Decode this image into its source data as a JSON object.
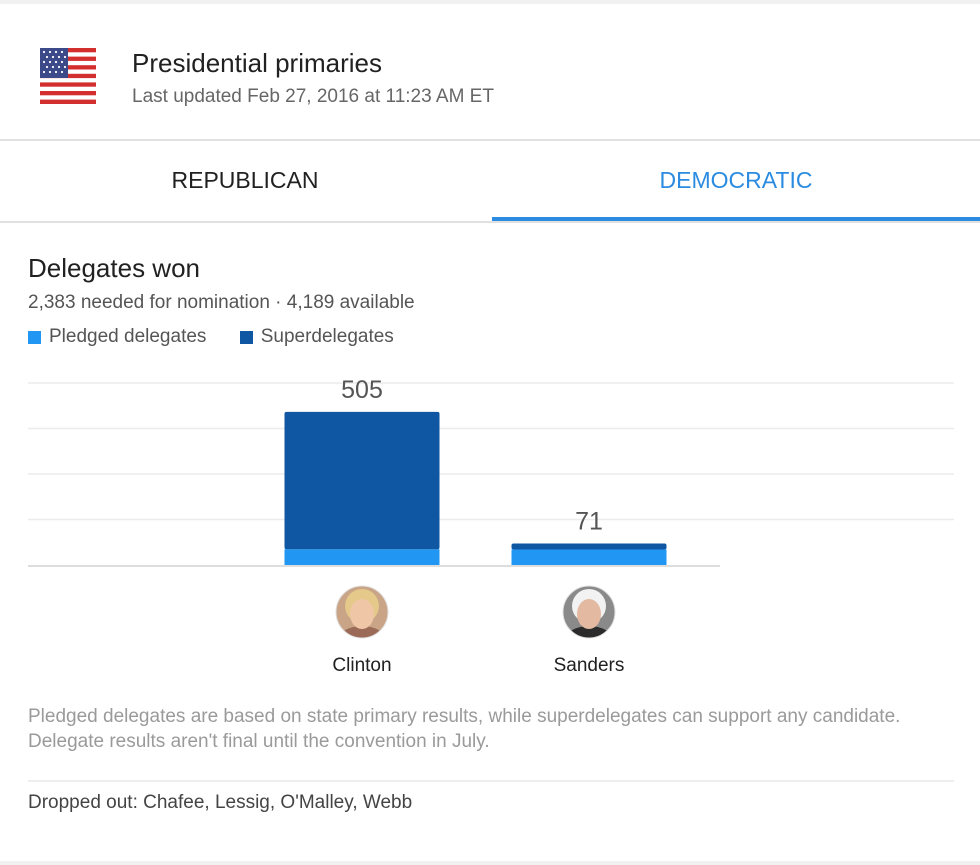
{
  "header": {
    "title": "Presidential primaries",
    "updated": "Last updated Feb 27, 2016 at 11:23 AM ET",
    "flag_icon": "us-flag-icon"
  },
  "tabs": [
    {
      "label": "REPUBLICAN",
      "active": false
    },
    {
      "label": "DEMOCRATIC",
      "active": true
    }
  ],
  "colors": {
    "accent": "#2b8be0",
    "pledged": "#2196f3",
    "superdelegates": "#0f56a3"
  },
  "chart_data": {
    "type": "bar",
    "stacked": true,
    "title": "Delegates won",
    "subtitle": "2,383 needed for nomination · 4,189 available",
    "categories": [
      "Clinton",
      "Sanders"
    ],
    "series": [
      {
        "name": "Pledged delegates",
        "color": "#2196f3",
        "values": [
          52,
          51
        ]
      },
      {
        "name": "Superdelegates",
        "color": "#0f56a3",
        "values": [
          453,
          20
        ]
      }
    ],
    "totals": [
      505,
      71
    ],
    "ylim": [
      0,
      600
    ],
    "grid": true,
    "legend_position": "top-left",
    "xlabel": "",
    "ylabel": ""
  },
  "candidates": [
    {
      "name": "Clinton",
      "avatar_icon": "clinton-avatar"
    },
    {
      "name": "Sanders",
      "avatar_icon": "sanders-avatar"
    }
  ],
  "footnote": "Pledged delegates are based on state primary results, while superdelegates can support any candidate. Delegate results aren't final until the convention in July.",
  "dropped_out": "Dropped out: Chafee, Lessig, O'Malley, Webb"
}
